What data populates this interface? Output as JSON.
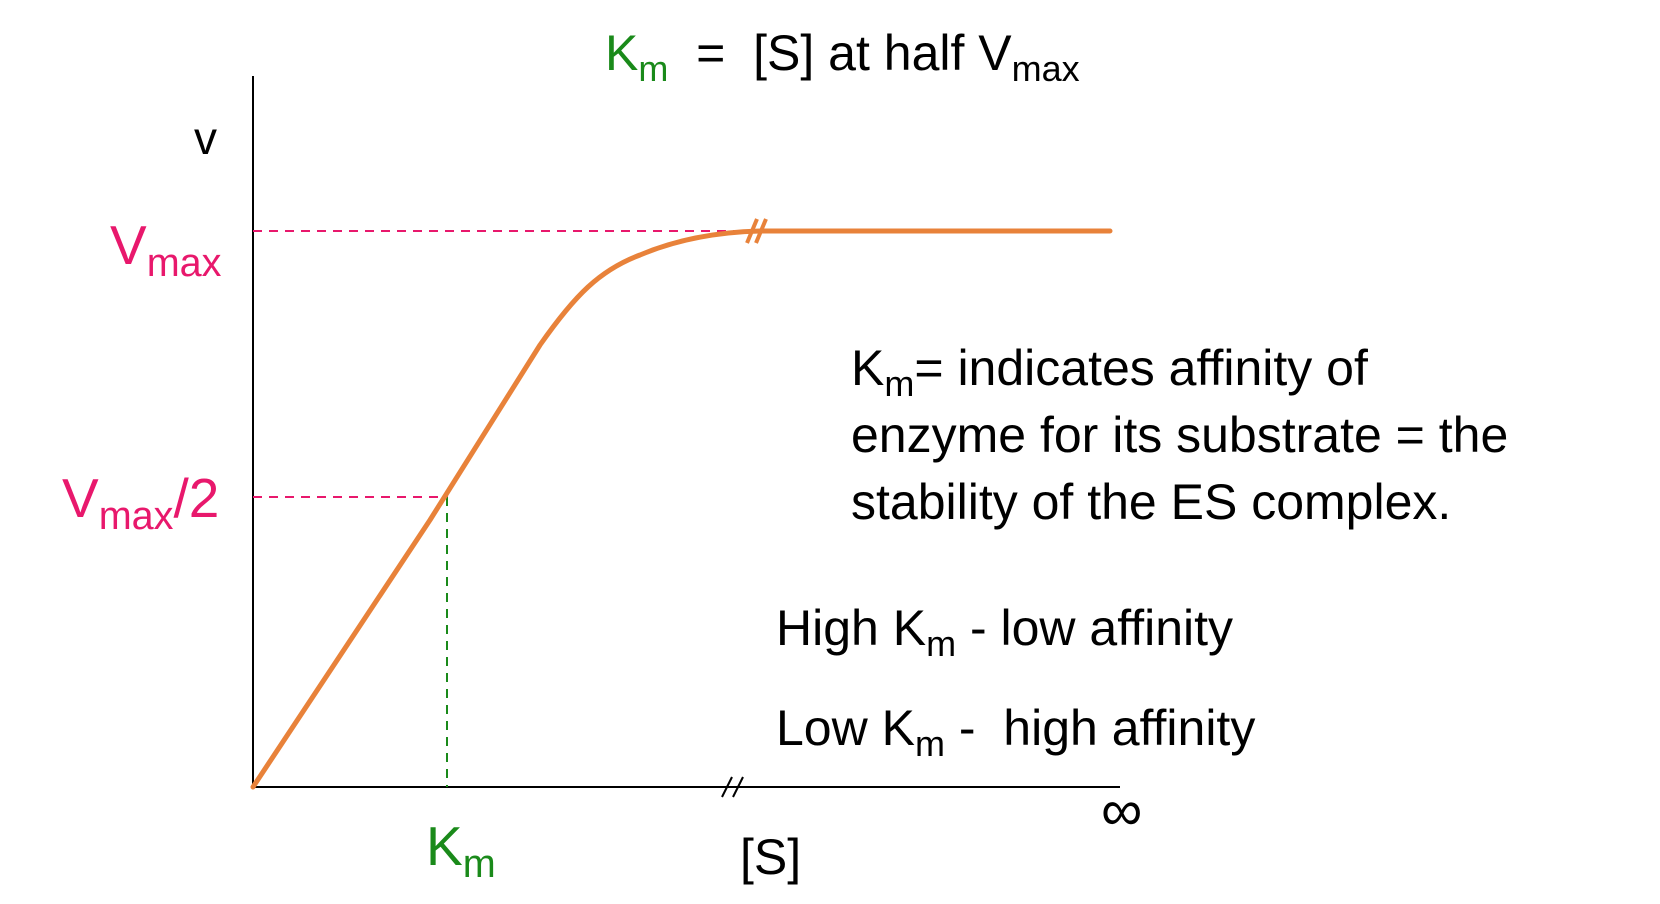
{
  "colors": {
    "km_green": "#1a8a1a",
    "vmax_pink": "#e8186c",
    "curve_orange": "#e8823a",
    "axis": "#000000"
  },
  "title": {
    "km_symbol": "K",
    "km_sub": "m",
    "eq": " =  [S] at half V",
    "vmax_sub": "max"
  },
  "axes": {
    "y_label": "v",
    "x_label": "[S]",
    "x_end_label": "∞",
    "break_mark": "//"
  },
  "labels": {
    "vmax": {
      "base": "V",
      "sub": "max"
    },
    "vmax_half": {
      "base": "V",
      "sub": "max",
      "suffix": "/2"
    },
    "km_axis": {
      "base": "K",
      "sub": "m"
    }
  },
  "description": {
    "line1_base": "K",
    "line1_sub": "m",
    "line1_rest": "= indicates affinity of",
    "line2": "enzyme for its substrate = the",
    "line3": "stability of the ES complex."
  },
  "notes": {
    "high": {
      "pre": "High K",
      "sub": "m",
      "post": " - low affinity"
    },
    "low": {
      "pre": "Low K",
      "sub": "m",
      "post": " -  high affinity"
    }
  }
}
